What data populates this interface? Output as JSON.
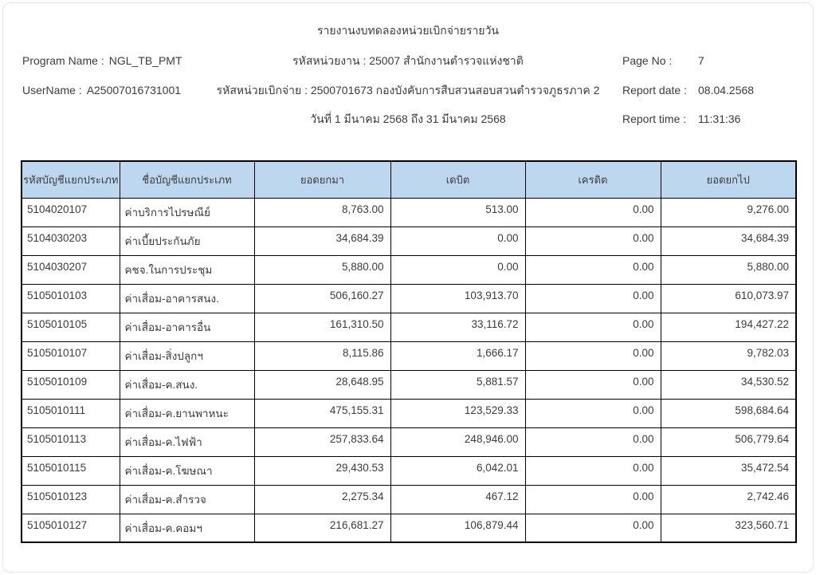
{
  "header": {
    "title": "รายงานงบทดลองหน่วยเบิกจ่ายรายวัน",
    "program_name_label": "Program Name :",
    "program_name_value": "NGL_TB_PMT",
    "username_label": "UserName :",
    "username_value": "A25007016731001",
    "agency_line": "รหัสหน่วยงาน : 25007 สำนักงานตำรวจแห่งชาติ",
    "disbursement_line": "รหัสหน่วยเบิกจ่าย : 2500701673 กองบังคับการสืบสวนสอบสวนตำรวจภูธรภาค 2",
    "period_line": "วันที่ 1 มีนาคม 2568 ถึง 31 มีนาคม 2568",
    "page_no_label": "Page No :",
    "page_no_value": "7",
    "report_date_label": "Report date :",
    "report_date_value": "08.04.2568",
    "report_time_label": "Report time :",
    "report_time_value": "11:31:36"
  },
  "table": {
    "columns": [
      "รหัสบัญชีแยกประเภท",
      "ชื่อบัญชีแยกประเภท",
      "ยอดยกมา",
      "เดบิต",
      "เครดิต",
      "ยอดยกไป"
    ],
    "rows": [
      [
        "5104020107",
        "ค่าบริการไปรษณีย์",
        "8,763.00",
        "513.00",
        "0.00",
        "9,276.00"
      ],
      [
        "5104030203",
        "ค่าเบี้ยประกันภัย",
        "34,684.39",
        "0.00",
        "0.00",
        "34,684.39"
      ],
      [
        "5104030207",
        "คชจ.ในการประชุม",
        "5,880.00",
        "0.00",
        "0.00",
        "5,880.00"
      ],
      [
        "5105010103",
        "ค่าเสื่อม-อาคารสนง.",
        "506,160.27",
        "103,913.70",
        "0.00",
        "610,073.97"
      ],
      [
        "5105010105",
        "ค่าเสื่อม-อาคารอื่น",
        "161,310.50",
        "33,116.72",
        "0.00",
        "194,427.22"
      ],
      [
        "5105010107",
        "ค่าเสื่อม-สิ่งปลูกฯ",
        "8,115.86",
        "1,666.17",
        "0.00",
        "9,782.03"
      ],
      [
        "5105010109",
        "ค่าเสื่อม-ค.สนง.",
        "28,648.95",
        "5,881.57",
        "0.00",
        "34,530.52"
      ],
      [
        "5105010111",
        "ค่าเสื่อม-ค.ยานพาหนะ",
        "475,155.31",
        "123,529.33",
        "0.00",
        "598,684.64"
      ],
      [
        "5105010113",
        "ค่าเสื่อม-ค.ไฟฟ้า",
        "257,833.64",
        "248,946.00",
        "0.00",
        "506,779.64"
      ],
      [
        "5105010115",
        "ค่าเสื่อม-ค.โฆษณา",
        "29,430.53",
        "6,042.01",
        "0.00",
        "35,472.54"
      ],
      [
        "5105010123",
        "ค่าเสื่อม-ค.สำรวจ",
        "2,275.34",
        "467.12",
        "0.00",
        "2,742.46"
      ],
      [
        "5105010127",
        "ค่าเสื่อม-ค.คอมฯ",
        "216,681.27",
        "106,879.44",
        "0.00",
        "323,560.71"
      ]
    ]
  },
  "colors": {
    "header_bg": "#BDD7EE",
    "table_border": "#000000",
    "text": "#3C3C3C",
    "page_border": "#E6E6E6"
  }
}
